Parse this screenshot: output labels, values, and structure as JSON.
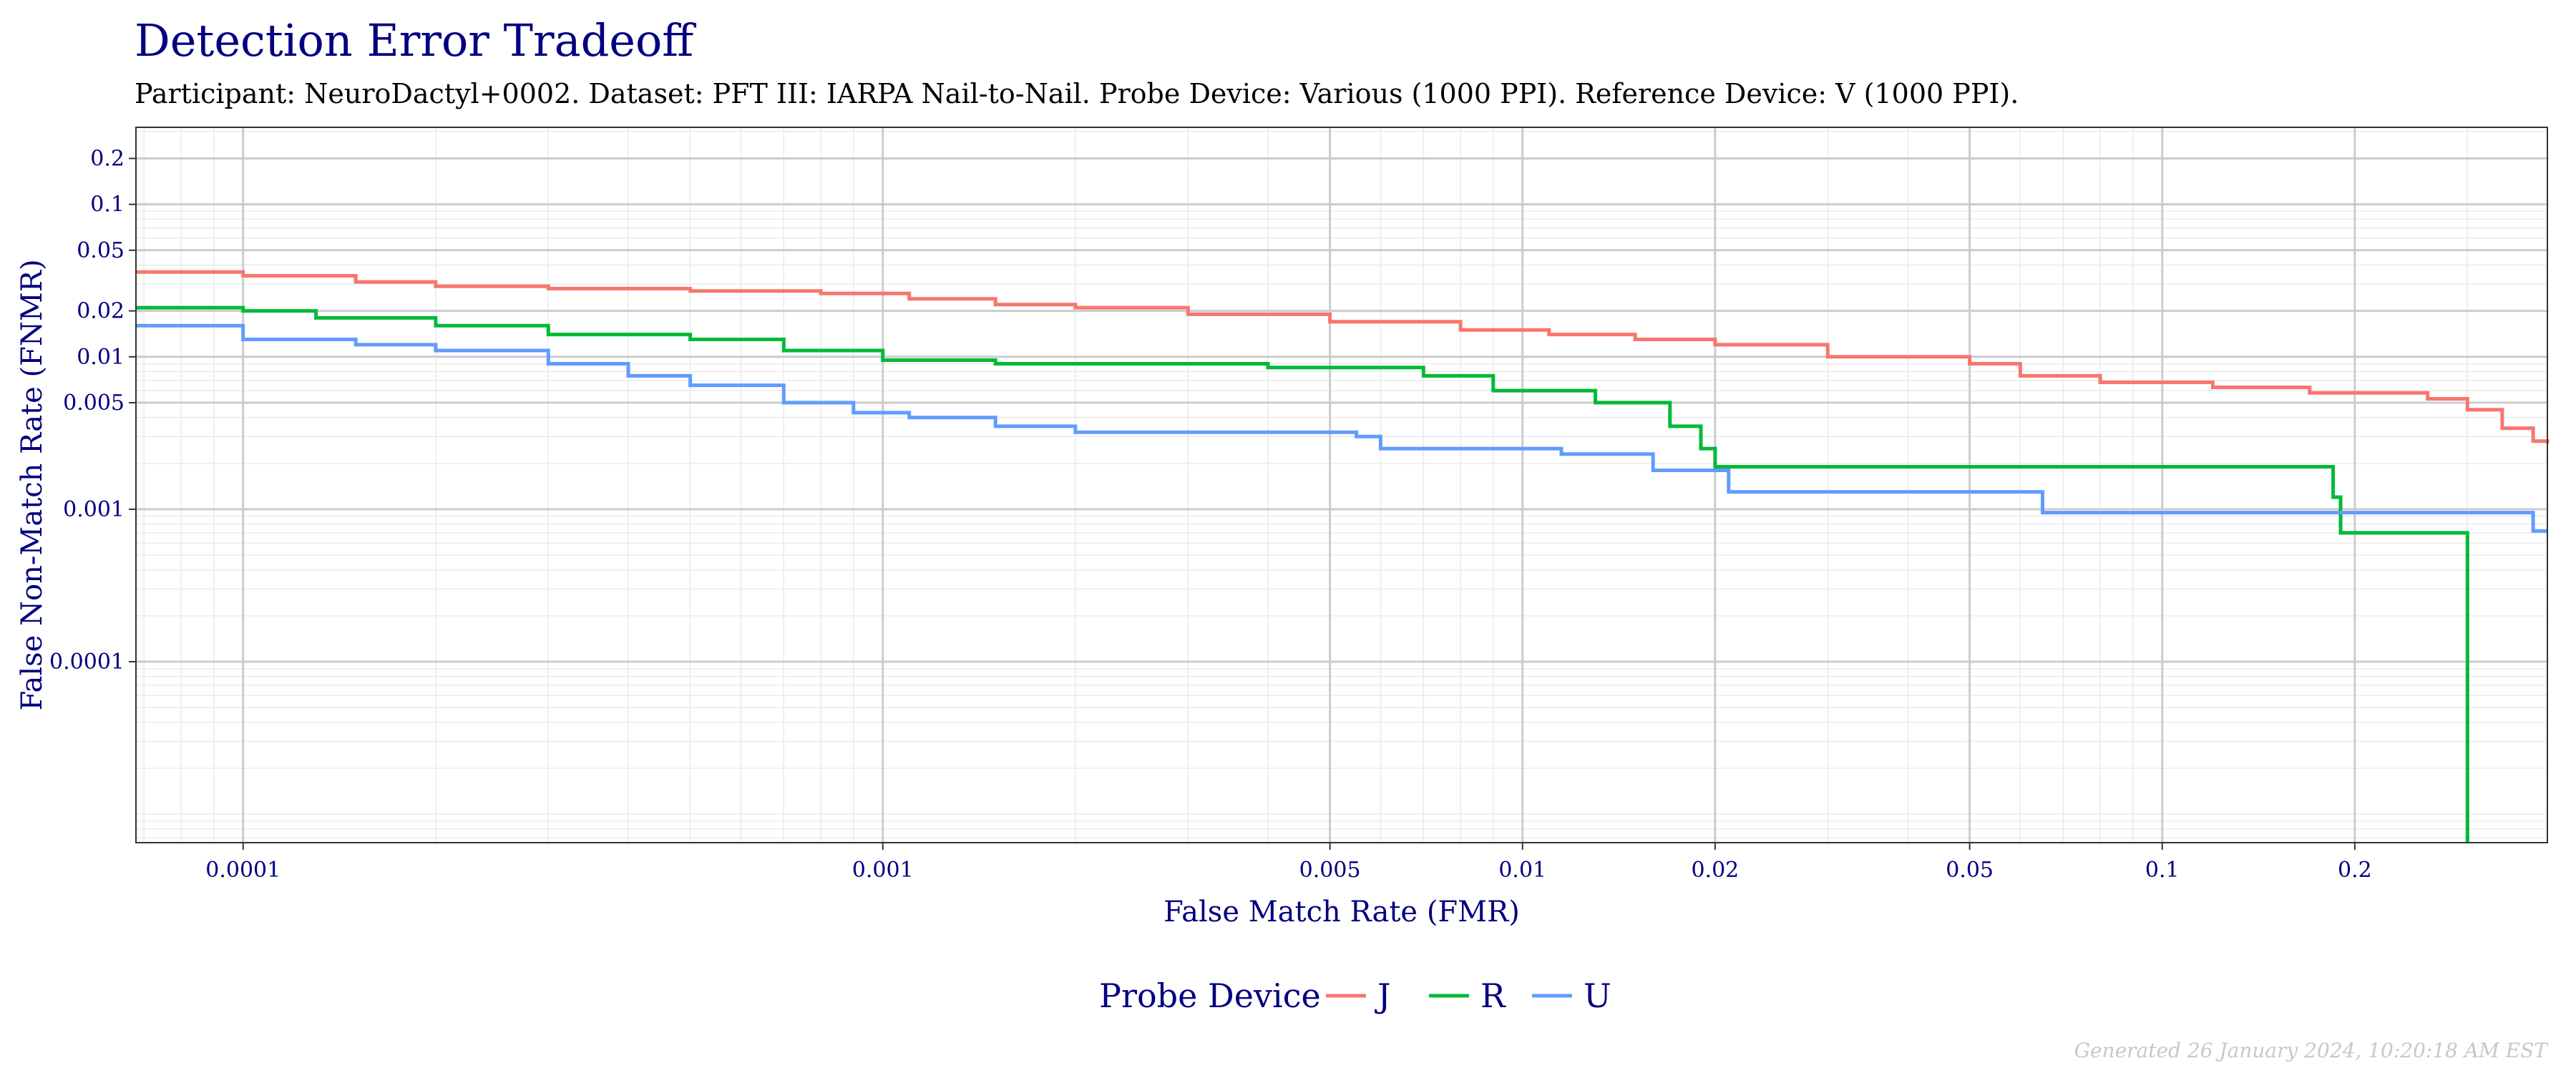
{
  "chart_data": {
    "type": "line",
    "title": "Detection Error Tradeoff",
    "subtitle": "Participant: NeuroDactyl+0002. Dataset: PFT III: IARPA Nail-to-Nail. Probe Device: Various (1000 PPI). Reference Device: V (1000 PPI).",
    "xlabel": "False Match Rate (FMR)",
    "ylabel": "False Non-Match Rate (FNMR)",
    "x_scale": "log",
    "y_scale": "log",
    "xlim": [
      6.8e-05,
      0.4
    ],
    "ylim": [
      6.5e-06,
      0.32
    ],
    "x_ticks": [
      {
        "value": 0.0001,
        "label": "0.0001"
      },
      {
        "value": 0.001,
        "label": "0.001"
      },
      {
        "value": 0.005,
        "label": "0.005"
      },
      {
        "value": 0.01,
        "label": "0.01"
      },
      {
        "value": 0.02,
        "label": "0.02"
      },
      {
        "value": 0.05,
        "label": "0.05"
      },
      {
        "value": 0.1,
        "label": "0.1"
      },
      {
        "value": 0.2,
        "label": "0.2"
      }
    ],
    "y_ticks": [
      {
        "value": 0.0001,
        "label": "0.0001"
      },
      {
        "value": 0.001,
        "label": "0.001"
      },
      {
        "value": 0.005,
        "label": "0.005"
      },
      {
        "value": 0.01,
        "label": "0.01"
      },
      {
        "value": 0.02,
        "label": "0.02"
      },
      {
        "value": 0.05,
        "label": "0.05"
      },
      {
        "value": 0.1,
        "label": "0.1"
      },
      {
        "value": 0.2,
        "label": "0.2"
      }
    ],
    "grid": true,
    "legend_title": "Probe Device",
    "legend_position": "bottom",
    "series": [
      {
        "name": "J",
        "color": "#F8766D",
        "points": [
          [
            6.8e-05,
            0.036
          ],
          [
            0.0001,
            0.034
          ],
          [
            0.00015,
            0.031
          ],
          [
            0.0002,
            0.029
          ],
          [
            0.0003,
            0.028
          ],
          [
            0.0005,
            0.027
          ],
          [
            0.0008,
            0.026
          ],
          [
            0.0011,
            0.024
          ],
          [
            0.0015,
            0.022
          ],
          [
            0.002,
            0.021
          ],
          [
            0.003,
            0.019
          ],
          [
            0.005,
            0.017
          ],
          [
            0.008,
            0.015
          ],
          [
            0.011,
            0.014
          ],
          [
            0.015,
            0.013
          ],
          [
            0.02,
            0.012
          ],
          [
            0.03,
            0.01
          ],
          [
            0.05,
            0.009
          ],
          [
            0.06,
            0.0075
          ],
          [
            0.08,
            0.0068
          ],
          [
            0.12,
            0.0063
          ],
          [
            0.17,
            0.0058
          ],
          [
            0.26,
            0.0053
          ],
          [
            0.3,
            0.0045
          ],
          [
            0.34,
            0.0034
          ],
          [
            0.38,
            0.0028
          ],
          [
            0.4,
            0.0027
          ]
        ]
      },
      {
        "name": "R",
        "color": "#00BA38",
        "points": [
          [
            6.8e-05,
            0.021
          ],
          [
            0.0001,
            0.02
          ],
          [
            0.00013,
            0.018
          ],
          [
            0.0002,
            0.016
          ],
          [
            0.0003,
            0.014
          ],
          [
            0.0005,
            0.013
          ],
          [
            0.0007,
            0.011
          ],
          [
            0.001,
            0.0095
          ],
          [
            0.0015,
            0.009
          ],
          [
            0.004,
            0.0085
          ],
          [
            0.007,
            0.0075
          ],
          [
            0.009,
            0.006
          ],
          [
            0.013,
            0.005
          ],
          [
            0.017,
            0.0035
          ],
          [
            0.019,
            0.0025
          ],
          [
            0.02,
            0.0019
          ],
          [
            0.18,
            0.0019
          ],
          [
            0.185,
            0.0012
          ],
          [
            0.19,
            0.0007
          ],
          [
            0.3,
            0.0007
          ],
          [
            0.3,
            6.5e-06
          ]
        ]
      },
      {
        "name": "U",
        "color": "#619CFF",
        "points": [
          [
            6.8e-05,
            0.016
          ],
          [
            0.0001,
            0.013
          ],
          [
            0.00015,
            0.012
          ],
          [
            0.0002,
            0.011
          ],
          [
            0.0003,
            0.009
          ],
          [
            0.0004,
            0.0075
          ],
          [
            0.0005,
            0.0065
          ],
          [
            0.0007,
            0.005
          ],
          [
            0.0009,
            0.0043
          ],
          [
            0.0011,
            0.004
          ],
          [
            0.0015,
            0.0035
          ],
          [
            0.002,
            0.0032
          ],
          [
            0.0055,
            0.003
          ],
          [
            0.006,
            0.0025
          ],
          [
            0.0115,
            0.0023
          ],
          [
            0.016,
            0.0018
          ],
          [
            0.021,
            0.0013
          ],
          [
            0.06,
            0.0013
          ],
          [
            0.065,
            0.00095
          ],
          [
            0.37,
            0.00095
          ],
          [
            0.38,
            0.00072
          ],
          [
            0.4,
            0.00072
          ]
        ]
      }
    ]
  },
  "footer": "Generated 26 January 2024, 10:20:18 AM EST"
}
